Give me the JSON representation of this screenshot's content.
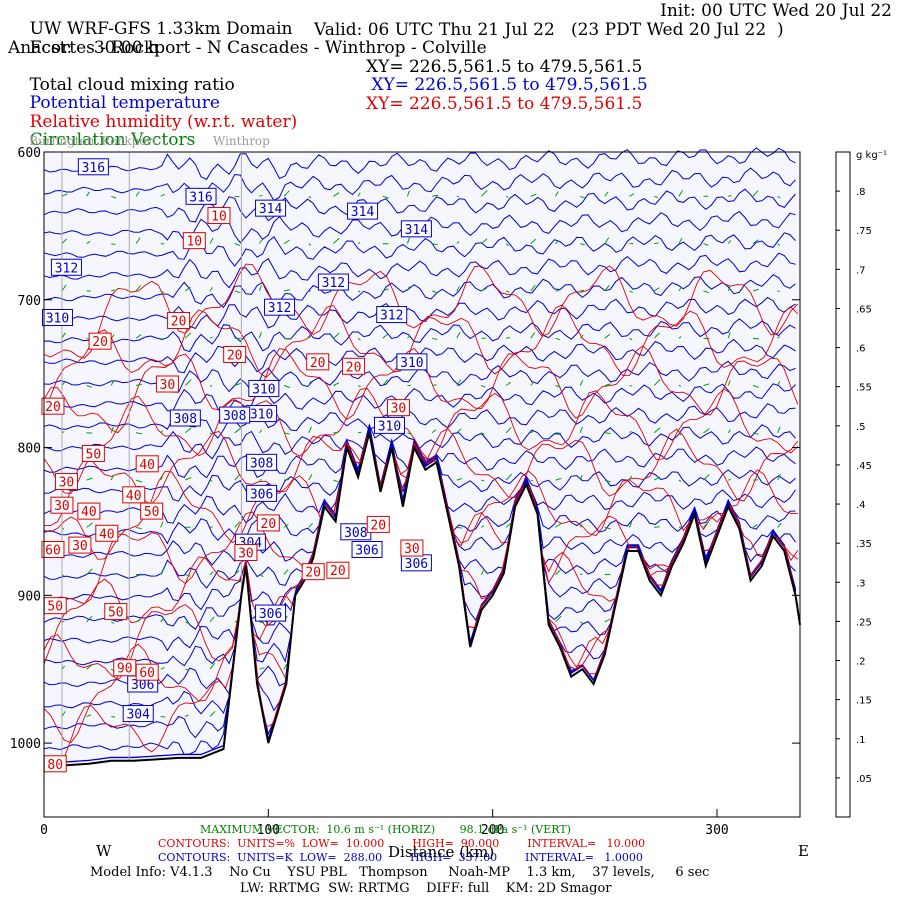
{
  "header": {
    "line1_left": "UW WRF-GFS 1.33km Domain",
    "line1_right": "Init: 00 UTC Wed 20 Jul 22",
    "line2_left": "Fcst:    30.00 h",
    "line2_mid": "Valid: 06 UTC Thu 21 Jul 22   (23 PDT Wed 20 Jul 22  )",
    "line3": "Anacortes - Rockport - N Cascades - Winthrop - Colville",
    "cloud_label": "Total cloud mixing ratio",
    "cloud_xy": "XY= 226.5,561.5 to 479.5,561.5",
    "theta_label": "Potential temperature",
    "theta_xy": " XY= 226.5,561.5 to 479.5,561.5",
    "rh_label": "Relative humidity (w.r.t. water)",
    "rh_xy": "XY= 226.5,561.5 to 479.5,561.5",
    "vec_label": "Circulation Vectors"
  },
  "footer": {
    "max_vector": "MAXIMUM VECTOR:  10.6 m s⁻¹ (HORIZ)       98.1 dPa s⁻¹ (VERT)",
    "rh_contours": "CONTOURS:  UNITS=%  LOW=  10.000        HIGH=  90.000        INTERVAL=   10.000",
    "theta_contours": "CONTOURS:  UNITS=K  LOW=  288.00        HIGH=  337.00        INTERVAL=   1.0000",
    "west": "W",
    "east": "E",
    "xlabel": "Distance (km)",
    "model_info": "Model Info: V4.1.3    No Cu    YSU PBL   Thompson     Noah-MP    1.3 km,    37 levels,     6 sec",
    "model_info2": "LW: RRTMG  SW: RRTMG    DIFF: full    KM: 2D Smagor"
  },
  "colors": {
    "theta": "#0000cc",
    "rh": "#dd0000",
    "vectors": "#00a000",
    "terrain": "#000000",
    "plot_bg": "#f6f6ff"
  },
  "chart_data": {
    "type": "cross-section",
    "x_range": [
      0,
      337
    ],
    "y_range": [
      1050,
      600
    ],
    "x_ticks": [
      0,
      100,
      200,
      300
    ],
    "y_ticks": [
      600,
      700,
      800,
      900,
      1000
    ],
    "y_scale": "reversed",
    "grid": false,
    "locations": [
      {
        "name": "Burlington",
        "km": 8
      },
      {
        "name": "Rockport",
        "km": 38
      },
      {
        "name": "Winthrop",
        "km": 88
      }
    ],
    "terrain": {
      "x": [
        0,
        10,
        20,
        30,
        40,
        50,
        60,
        70,
        80,
        88,
        90,
        95,
        100,
        103,
        108,
        112,
        116,
        120,
        125,
        130,
        135,
        140,
        145,
        150,
        155,
        160,
        165,
        170,
        175,
        180,
        185,
        190,
        195,
        200,
        205,
        210,
        215,
        220,
        225,
        230,
        235,
        240,
        245,
        250,
        255,
        260,
        265,
        270,
        275,
        280,
        285,
        290,
        295,
        300,
        305,
        310,
        315,
        320,
        325,
        330,
        335,
        337
      ],
      "p": [
        1015,
        1015,
        1014,
        1012,
        1012,
        1011,
        1010,
        1010,
        1004,
        900,
        880,
        960,
        1000,
        985,
        960,
        900,
        890,
        875,
        840,
        850,
        800,
        820,
        790,
        830,
        800,
        840,
        800,
        815,
        810,
        845,
        880,
        935,
        910,
        900,
        885,
        840,
        825,
        845,
        920,
        935,
        955,
        950,
        960,
        940,
        905,
        870,
        870,
        890,
        900,
        880,
        865,
        845,
        880,
        860,
        840,
        855,
        890,
        880,
        860,
        870,
        900,
        920
      ]
    },
    "theta_contours": {
      "units": "K",
      "labels": [
        {
          "value": 316,
          "x": 22,
          "p": 610
        },
        {
          "value": 316,
          "x": 70,
          "p": 630
        },
        {
          "value": 314,
          "x": 101,
          "p": 638
        },
        {
          "value": 314,
          "x": 142,
          "p": 640
        },
        {
          "value": 314,
          "x": 166,
          "p": 652
        },
        {
          "value": 312,
          "x": 10,
          "p": 678
        },
        {
          "value": 312,
          "x": 105,
          "p": 705
        },
        {
          "value": 312,
          "x": 129,
          "p": 688
        },
        {
          "value": 312,
          "x": 155,
          "p": 710
        },
        {
          "value": 310,
          "x": 6,
          "p": 712
        },
        {
          "value": 310,
          "x": 98,
          "p": 760
        },
        {
          "value": 310,
          "x": 97,
          "p": 777
        },
        {
          "value": 310,
          "x": 164,
          "p": 742
        },
        {
          "value": 310,
          "x": 154,
          "p": 785
        },
        {
          "value": 308,
          "x": 63,
          "p": 780
        },
        {
          "value": 308,
          "x": 85,
          "p": 778
        },
        {
          "value": 308,
          "x": 97,
          "p": 810
        },
        {
          "value": 308,
          "x": 139,
          "p": 857
        },
        {
          "value": 306,
          "x": 97,
          "p": 831
        },
        {
          "value": 306,
          "x": 101,
          "p": 912
        },
        {
          "value": 306,
          "x": 144,
          "p": 869
        },
        {
          "value": 306,
          "x": 166,
          "p": 878
        },
        {
          "value": 306,
          "x": 44,
          "p": 960
        },
        {
          "value": 304,
          "x": 92,
          "p": 864
        },
        {
          "value": 304,
          "x": 42,
          "p": 980
        }
      ]
    },
    "rh_contours": {
      "units": "%",
      "labels": [
        {
          "value": 10,
          "x": 78,
          "p": 643
        },
        {
          "value": 10,
          "x": 67,
          "p": 660
        },
        {
          "value": 20,
          "x": 25,
          "p": 728
        },
        {
          "value": 20,
          "x": 60,
          "p": 714
        },
        {
          "value": 20,
          "x": 85,
          "p": 737
        },
        {
          "value": 20,
          "x": 122,
          "p": 742
        },
        {
          "value": 20,
          "x": 138,
          "p": 745
        },
        {
          "value": 20,
          "x": 4,
          "p": 772
        },
        {
          "value": 20,
          "x": 100,
          "p": 851
        },
        {
          "value": 20,
          "x": 120,
          "p": 884
        },
        {
          "value": 20,
          "x": 131,
          "p": 883
        },
        {
          "value": 20,
          "x": 149,
          "p": 852
        },
        {
          "value": 30,
          "x": 55,
          "p": 757
        },
        {
          "value": 30,
          "x": 158,
          "p": 773
        },
        {
          "value": 30,
          "x": 10,
          "p": 823
        },
        {
          "value": 30,
          "x": 8,
          "p": 839
        },
        {
          "value": 30,
          "x": 16,
          "p": 866
        },
        {
          "value": 30,
          "x": 90,
          "p": 871
        },
        {
          "value": 30,
          "x": 164,
          "p": 868
        },
        {
          "value": 40,
          "x": 46,
          "p": 811
        },
        {
          "value": 40,
          "x": 40,
          "p": 832
        },
        {
          "value": 40,
          "x": 20,
          "p": 843
        },
        {
          "value": 40,
          "x": 28,
          "p": 858
        },
        {
          "value": 50,
          "x": 22,
          "p": 804
        },
        {
          "value": 50,
          "x": 48,
          "p": 843
        },
        {
          "value": 50,
          "x": 5,
          "p": 907
        },
        {
          "value": 50,
          "x": 32,
          "p": 911
        },
        {
          "value": 60,
          "x": 4,
          "p": 869
        },
        {
          "value": 60,
          "x": 46,
          "p": 952
        },
        {
          "value": 80,
          "x": 5,
          "p": 1014
        },
        {
          "value": 90,
          "x": 36,
          "p": 949
        }
      ]
    },
    "colorbar": {
      "units": "g kg⁻¹",
      "ticks": [
        ".05",
        ".1",
        ".15",
        ".2",
        ".25",
        ".3",
        ".35",
        ".4",
        ".45",
        ".5",
        ".55",
        ".6",
        ".65",
        ".7",
        ".75",
        ".8"
      ],
      "colors": [
        "#6a6ae0",
        "#6aa0e0",
        "#6ad0d8",
        "#6ae0b0",
        "#6ae08a",
        "#8ae06a",
        "#b0e06a",
        "#d8e06a",
        "#f0d06a",
        "#f0b06a",
        "#f09a6a",
        "#f08a7a",
        "#f08a8a",
        "#e87a7a",
        "#e06a6a",
        "#d85a5a",
        "#d05050"
      ]
    }
  }
}
